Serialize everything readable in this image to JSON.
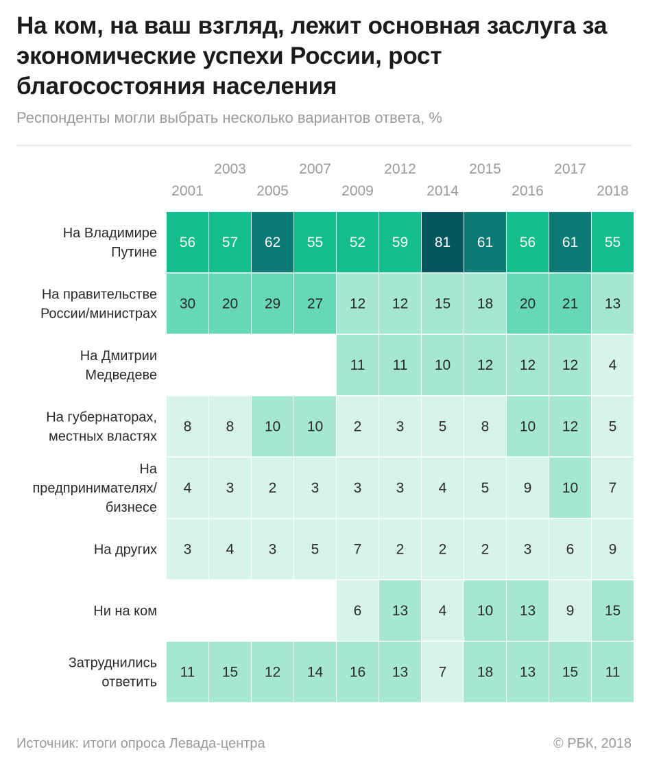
{
  "title": "На ком, на ваш взгляд, лежит основная заслуга за экономические успехи России, рост благосостояния населения",
  "subtitle": "Респонденты могли выбрать несколько вариантов ответа, %",
  "source": "Источник: итоги опроса Левада-центра",
  "copyright": "© РБК, 2018",
  "colors": {
    "lightest": "#d7f4ea",
    "light": "#a6e7d2",
    "medium": "#66d8b6",
    "strong": "#12bf8c",
    "dark": "#0a7a75",
    "darkest": "#065660",
    "text_dark": "#2a2a2a",
    "text_light": "#ffffff",
    "axis_label": "#9a9a9a"
  },
  "chart_data": {
    "type": "heatmap",
    "title": "На ком, на ваш взгляд, лежит основная заслуга за экономические успехи России, рост благосостояния населения",
    "subtitle": "Респонденты могли выбрать несколько вариантов ответа, %",
    "unit": "%",
    "columns": [
      "2001",
      "2003",
      "2005",
      "2007",
      "2009",
      "2012",
      "2014",
      "2015",
      "2016",
      "2017",
      "2018"
    ],
    "rows": [
      {
        "label": [
          "На Владимире",
          "Путине"
        ],
        "values": [
          56,
          57,
          62,
          55,
          52,
          59,
          81,
          61,
          56,
          61,
          55
        ]
      },
      {
        "label": [
          "На правительстве",
          "России/министрах"
        ],
        "values": [
          30,
          20,
          29,
          27,
          12,
          12,
          15,
          18,
          20,
          21,
          13
        ]
      },
      {
        "label": [
          "На Дмитрии",
          "Медведеве"
        ],
        "values": [
          null,
          null,
          null,
          null,
          11,
          11,
          10,
          12,
          12,
          12,
          4
        ]
      },
      {
        "label": [
          "На губернаторах,",
          "местных властях"
        ],
        "values": [
          8,
          8,
          10,
          10,
          2,
          3,
          5,
          8,
          10,
          12,
          5
        ]
      },
      {
        "label": [
          "На",
          "предпринимателях/",
          "бизнесе"
        ],
        "values": [
          4,
          3,
          2,
          3,
          3,
          3,
          4,
          5,
          9,
          10,
          7
        ]
      },
      {
        "label": [
          "На других"
        ],
        "values": [
          3,
          4,
          3,
          5,
          7,
          2,
          2,
          2,
          3,
          6,
          9
        ]
      },
      {
        "label": [
          "Ни на ком"
        ],
        "values": [
          null,
          null,
          null,
          null,
          6,
          13,
          4,
          10,
          13,
          9,
          15
        ]
      },
      {
        "label": [
          "Затруднились",
          "ответить"
        ],
        "values": [
          11,
          15,
          12,
          14,
          16,
          13,
          7,
          18,
          13,
          15,
          11
        ]
      }
    ]
  }
}
